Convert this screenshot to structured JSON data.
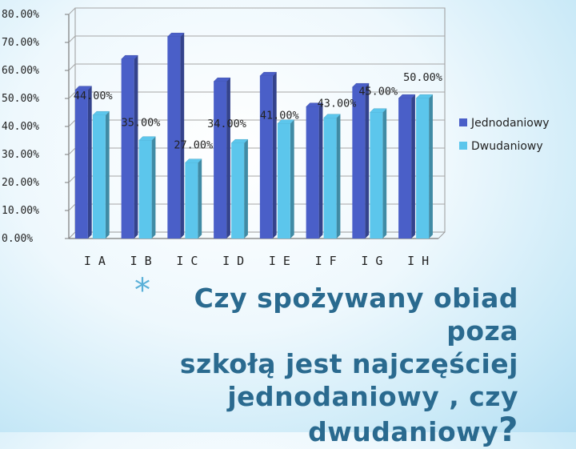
{
  "chart_data": {
    "type": "bar",
    "categories": [
      "I A",
      "I B",
      "I C",
      "I D",
      "I E",
      "I F",
      "I G",
      "I H"
    ],
    "series": [
      {
        "name": "Jednodaniowy",
        "values": [
          0.53,
          0.64,
          0.72,
          0.56,
          0.58,
          0.47,
          0.54,
          0.5
        ],
        "color": "#4a5fc8"
      },
      {
        "name": "Dwudaniowy",
        "values": [
          0.44,
          0.35,
          0.27,
          0.34,
          0.41,
          0.43,
          0.45,
          0.5
        ],
        "color": "#5cc6ec"
      }
    ],
    "data_labels": [
      "44.00%",
      "35.00%",
      "27.00%",
      "34.00%",
      "41.00%",
      "43.00%",
      "45.00%",
      "50.00%"
    ],
    "y_ticks": [
      "0.00%",
      "10.00%",
      "20.00%",
      "30.00%",
      "40.00%",
      "50.00%",
      "60.00%",
      "70.00%",
      "80.00%"
    ],
    "ylim": [
      0,
      0.8
    ],
    "grid": true,
    "legend_position": "right"
  },
  "caption": {
    "bullet": "*",
    "line1": "Czy spożywany obiad poza",
    "line2": "szkołą jest najczęściej",
    "line3": "jednodaniowy , czy",
    "line4": "dwudaniowy",
    "question_mark": "?"
  }
}
